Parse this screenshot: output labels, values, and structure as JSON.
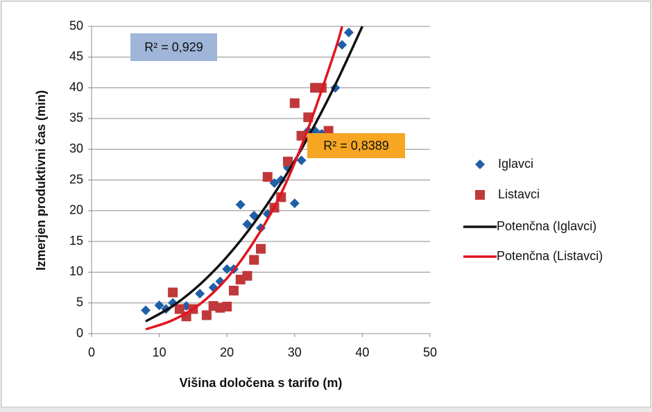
{
  "chart_data": {
    "type": "scatter",
    "xlabel": "Višina določena s tarifo (m)",
    "ylabel": "Izmerjen produktivni čas (min)",
    "xlim": [
      0,
      50
    ],
    "xticks": [
      0,
      10,
      20,
      30,
      40,
      50
    ],
    "ylim": [
      0,
      50
    ],
    "yticks": [
      0,
      5,
      10,
      15,
      20,
      25,
      30,
      35,
      40,
      45,
      50
    ],
    "grid": true,
    "legend": "right",
    "annotations": [
      {
        "text": "R² = 0,929",
        "color": "#9fb6d8"
      },
      {
        "text": "R² = 0,8389",
        "color": "#f6a623"
      }
    ],
    "series": [
      {
        "name": "Iglavci",
        "type": "scatter",
        "marker": "diamond",
        "color": "#1f5fa8",
        "x": [
          8,
          10,
          11,
          12,
          14,
          16,
          18,
          19,
          20,
          21,
          22,
          23,
          24,
          25,
          26,
          27,
          28,
          29,
          30,
          31,
          32,
          33,
          34,
          35,
          36,
          37,
          38
        ],
        "values": [
          3.8,
          4.6,
          4,
          5,
          4.5,
          6.5,
          7.5,
          8.5,
          10.5,
          10.5,
          21,
          17.8,
          19.2,
          17.2,
          19.5,
          24.5,
          25,
          27,
          21.2,
          28.2,
          33,
          33,
          32.5,
          32.5,
          40,
          47,
          49
        ]
      },
      {
        "name": "Listavci",
        "type": "scatter",
        "marker": "square",
        "color": "#c0383a",
        "x": [
          12,
          13,
          14,
          15,
          17,
          18,
          19,
          20,
          21,
          22,
          23,
          24,
          25,
          26,
          27,
          28,
          29,
          30,
          31,
          32,
          33,
          34,
          35
        ],
        "values": [
          6.7,
          4,
          2.8,
          4,
          3,
          4.5,
          4.2,
          4.4,
          7,
          8.8,
          9.4,
          12,
          13.8,
          25.5,
          20.5,
          22.2,
          28,
          37.5,
          32.2,
          35.2,
          40,
          40,
          33
        ]
      },
      {
        "name": "Potenčna (Iglavci)",
        "type": "line",
        "color": "#111111",
        "x": [
          8,
          12,
          16,
          20,
          24,
          28,
          32,
          36,
          40
        ],
        "values": [
          2,
          4.5,
          8,
          12.5,
          18,
          24.5,
          32,
          40.5,
          50
        ]
      },
      {
        "name": "Potenčna (Listavci)",
        "type": "line",
        "color": "#e0141e",
        "x": [
          8,
          12,
          16,
          20,
          24,
          28,
          32,
          36,
          37
        ],
        "values": [
          0.7,
          2.2,
          4.8,
          9,
          15,
          22.8,
          33.4,
          46.2,
          50
        ]
      }
    ]
  }
}
